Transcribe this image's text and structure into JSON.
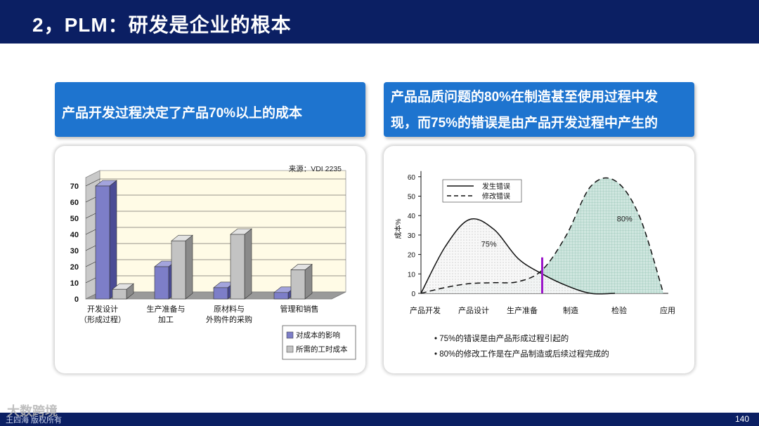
{
  "header": {
    "title": "2，PLM：研发是企业的根本"
  },
  "footer": {
    "copyright": "王四海 版权所有",
    "page_number": "140",
    "watermark": "大数跨境"
  },
  "left_banner": {
    "text": "产品开发过程决定了产品70%以上的成本"
  },
  "right_banner": {
    "line1": "产品品质问题的80%在制造甚至使用过程中发",
    "line2": "现，而75%的错误是由产品开发过程中产生的"
  },
  "colors": {
    "navy": "#0b1f63",
    "accent_blue": "#1e74cf",
    "bar_purple": "#7d7ec8",
    "bar_gray": "#c3c3c3",
    "curve_fill": "#cfe6df",
    "marker": "#9b17c9"
  },
  "chart_data": [
    {
      "type": "bar",
      "source_note": "来源：VDI 2235",
      "y_ticks": [
        "0",
        "10",
        "20",
        "30",
        "40",
        "50",
        "60",
        "70"
      ],
      "ylim": [
        0,
        70
      ],
      "categories": [
        {
          "line1": "开发设计",
          "line2": "（形成过程）"
        },
        {
          "line1": "生产准备与",
          "line2": "加工"
        },
        {
          "line1": "原材料与",
          "line2": "外购件的采购"
        },
        {
          "line1": "管理和销售",
          "line2": ""
        }
      ],
      "series": [
        {
          "name": "对成本的影响",
          "values": [
            70,
            20,
            7,
            4
          ]
        },
        {
          "name": "所需的工时成本",
          "values": [
            6,
            36,
            40,
            18
          ]
        }
      ],
      "legend_position": "bottom-right"
    },
    {
      "type": "area",
      "ylabel": "成本%",
      "y_ticks": [
        "0",
        "10",
        "20",
        "30",
        "40",
        "50",
        "60"
      ],
      "ylim": [
        0,
        60
      ],
      "x_labels": [
        "产品开发",
        "产品设计",
        "生产准备",
        "制造",
        "检验",
        "应用"
      ],
      "series": [
        {
          "name": "发生错误",
          "style": "solid",
          "x": [
            0,
            0.5,
            1,
            1.5,
            2,
            2.5,
            3,
            3.5,
            4
          ],
          "values": [
            0,
            24,
            38,
            33,
            18,
            10,
            4,
            0,
            0
          ]
        },
        {
          "name": "修改错误",
          "style": "dashed",
          "x": [
            0,
            0.5,
            1,
            1.5,
            2,
            2.5,
            3,
            3.5,
            4,
            4.5,
            5
          ],
          "values": [
            0,
            3,
            5,
            5.5,
            6,
            12,
            30,
            55,
            58,
            40,
            0
          ]
        }
      ],
      "area_labels": [
        "75%",
        "80%"
      ],
      "legend_position": "top-left",
      "notes": [
        "75%的错误是由产品形成过程引起的",
        "80%的修改工作是在产品制造或后续过程完成的"
      ]
    }
  ]
}
